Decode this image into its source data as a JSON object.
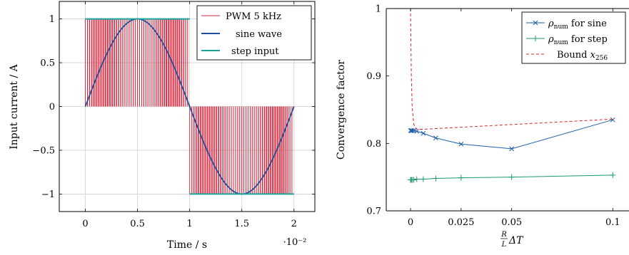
{
  "chart_data": [
    {
      "type": "line",
      "xlabel": "Time / s",
      "ylabel": "Input current / A",
      "x_scale_note": "·10⁻²",
      "xlim": [
        -0.25,
        2.2
      ],
      "ylim": [
        -1.2,
        1.2
      ],
      "xticks": [
        0,
        0.5,
        1,
        1.5,
        2
      ],
      "xtick_labels": [
        "0",
        "0.5",
        "1",
        "1.5",
        "2"
      ],
      "yticks": [
        -1,
        -0.5,
        0,
        0.5,
        1
      ],
      "ytick_labels": [
        "−1",
        "−0.5",
        "0",
        "0.5",
        "1"
      ],
      "grid": true,
      "legend_position": "top-right",
      "pwm_frequency_khz": 5,
      "series": [
        {
          "name": "PWM 5 kHz",
          "color": "#d7263d",
          "kind": "pwm-pulses",
          "x_start": 0,
          "x_end": 2,
          "levels": [
            1,
            -1
          ]
        },
        {
          "name": "sine wave",
          "color": "#1f4e9c",
          "kind": "sine",
          "amplitude": 1,
          "period": 2,
          "x_start": 0,
          "x_end": 2
        },
        {
          "name": "step input",
          "color": "#1aa39a",
          "kind": "step",
          "x": [
            0,
            1,
            1,
            2
          ],
          "y": [
            1,
            1,
            -1,
            -1
          ]
        }
      ]
    },
    {
      "type": "line",
      "xlabel": "R/L ΔT",
      "ylabel": "Convergence factor",
      "xlim": [
        -0.012,
        0.108
      ],
      "ylim": [
        0.7,
        1.0
      ],
      "xticks": [
        0,
        0.025,
        0.05,
        0.1
      ],
      "xtick_labels": [
        "0",
        "0.025",
        "0.05",
        "0.1"
      ],
      "yticks": [
        0.7,
        0.8,
        0.9,
        1
      ],
      "ytick_labels": [
        "0.7",
        "0.8",
        "0.9",
        "1"
      ],
      "grid": false,
      "legend_position": "top-right",
      "series": [
        {
          "name": "ρnum for sine",
          "color": "#1f5fa8",
          "marker": "x",
          "x": [
            0.0,
            0.0004,
            0.0008,
            0.0016,
            0.0031,
            0.0063,
            0.0125,
            0.025,
            0.05,
            0.1
          ],
          "y": [
            0.819,
            0.819,
            0.819,
            0.819,
            0.818,
            0.815,
            0.808,
            0.799,
            0.792,
            0.835
          ]
        },
        {
          "name": "ρnum for step",
          "color": "#1a9b6a",
          "marker": "+",
          "x": [
            0.0,
            0.0004,
            0.0008,
            0.0016,
            0.0031,
            0.0063,
            0.0125,
            0.025,
            0.05,
            0.1
          ],
          "y": [
            0.746,
            0.746,
            0.746,
            0.746,
            0.747,
            0.747,
            0.748,
            0.749,
            0.75,
            0.753
          ]
        },
        {
          "name": "Bound x256",
          "color": "#d62728",
          "dash": "dashed",
          "x": [
            0.0,
            0.0004,
            0.0008,
            0.0016,
            0.0031,
            0.0063,
            0.0125,
            0.025,
            0.05,
            0.1
          ],
          "y": [
            1.0,
            0.9,
            0.855,
            0.828,
            0.821,
            0.821,
            0.822,
            0.824,
            0.828,
            0.836
          ]
        }
      ]
    }
  ]
}
